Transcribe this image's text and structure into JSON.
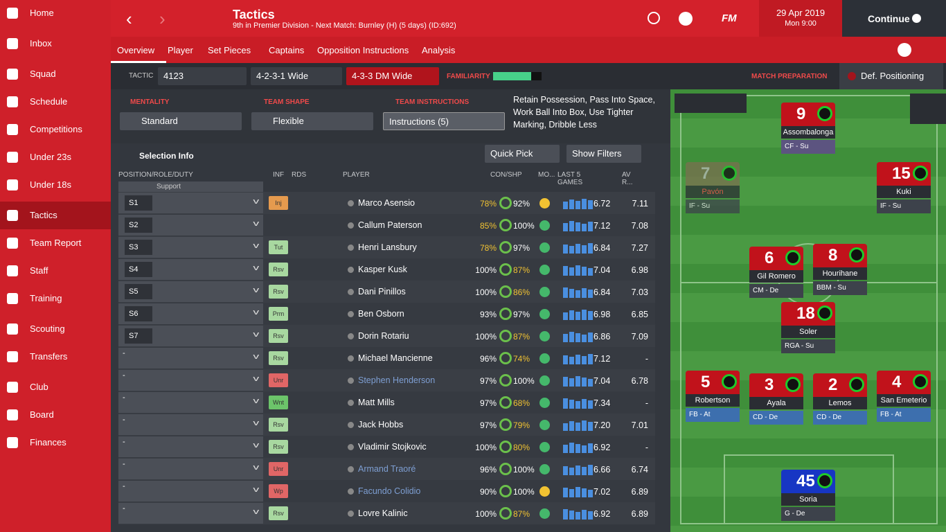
{
  "sidebar": {
    "items": [
      "Home",
      "Inbox",
      "Squad",
      "Schedule",
      "Competitions",
      "Under 23s",
      "Under 18s",
      "Tactics",
      "Team Report",
      "Staff",
      "Training",
      "Scouting",
      "Transfers",
      "Club",
      "Board",
      "Finances"
    ]
  },
  "header": {
    "title": "Tactics",
    "subtitle": "9th in Premier Division - Next Match: Burnley (H) (5 days) (ID:692)",
    "date": "29 Apr 2019",
    "time": "Mon 9:00",
    "continue": "Continue",
    "logo": "FM"
  },
  "tabs": [
    "Overview",
    "Player",
    "Set Pieces",
    "Captains",
    "Opposition Instructions",
    "Analysis"
  ],
  "tactic_bar": {
    "label": "TACTIC",
    "name": "4123",
    "formation_a": "4-2-3-1 Wide",
    "formation_b": "4-3-3 DM Wide",
    "familiarity": "FAMILIARITY",
    "match_preparation": "MATCH PREPARATION",
    "focus": "Def. Positioning"
  },
  "settings": {
    "mentality_label": "MENTALITY",
    "mentality": "Standard",
    "shape_label": "TEAM SHAPE",
    "shape": "Flexible",
    "instructions_label": "TEAM INSTRUCTIONS",
    "instructions": "Instructions (5)",
    "instructions_text": "Retain Possession, Pass Into Space, Work Ball Into Box, Use Tighter Marking, Dribble Less"
  },
  "toolbar": {
    "selection_info": "Selection Info",
    "quick_pick": "Quick Pick",
    "show_filters": "Show Filters"
  },
  "table": {
    "headers": [
      "POSITION/ROLE/DUTY",
      "INF",
      "RDS",
      "PLAYER",
      "CON/SHP",
      "MO...",
      "LAST 5 GAMES",
      "AV R..."
    ],
    "partial_row": "Support",
    "rows": [
      {
        "pos": "S1",
        "inf": "Inj",
        "player": "Marco Asensio",
        "con": "78%",
        "shp": "92%",
        "last5": "6.72",
        "av": "7.11"
      },
      {
        "pos": "S2",
        "player": "Callum Paterson",
        "con": "85%",
        "shp": "100%",
        "last5": "7.12",
        "av": "7.08"
      },
      {
        "pos": "S3",
        "inf": "Tut",
        "player": "Henri Lansbury",
        "con": "78%",
        "shp": "97%",
        "last5": "6.84",
        "av": "7.27"
      },
      {
        "pos": "S4",
        "inf": "Rsv",
        "player": "Kasper Kusk",
        "con": "100%",
        "shp": "87%",
        "last5": "7.04",
        "av": "6.98"
      },
      {
        "pos": "S5",
        "inf": "Rsv",
        "player": "Dani Pinillos",
        "con": "100%",
        "shp": "86%",
        "last5": "6.84",
        "av": "7.03"
      },
      {
        "pos": "S6",
        "inf": "Prm",
        "player": "Ben Osborn",
        "con": "93%",
        "shp": "97%",
        "last5": "6.98",
        "av": "6.85"
      },
      {
        "pos": "S7",
        "inf": "Rsv",
        "player": "Dorin Rotariu",
        "con": "100%",
        "shp": "87%",
        "last5": "6.86",
        "av": "7.09"
      },
      {
        "pos": "-",
        "inf": "Rsv",
        "player": "Michael Mancienne",
        "con": "96%",
        "shp": "74%",
        "last5": "7.12",
        "av": "-"
      },
      {
        "pos": "-",
        "inf": "Unr",
        "player": "Stephen Henderson",
        "con": "97%",
        "shp": "100%",
        "last5": "7.04",
        "av": "6.78"
      },
      {
        "pos": "-",
        "inf": "Wnt",
        "player": "Matt Mills",
        "con": "97%",
        "shp": "68%",
        "last5": "7.34",
        "av": "-"
      },
      {
        "pos": "-",
        "inf": "Rsv",
        "player": "Jack Hobbs",
        "con": "97%",
        "shp": "79%",
        "last5": "7.20",
        "av": "7.01"
      },
      {
        "pos": "-",
        "inf": "Rsv",
        "player": "Vladimir Stojkovic",
        "con": "100%",
        "shp": "80%",
        "last5": "6.92",
        "av": "-"
      },
      {
        "pos": "-",
        "inf": "Unr",
        "player": "Armand Traoré",
        "con": "96%",
        "shp": "100%",
        "last5": "6.66",
        "av": "6.74"
      },
      {
        "pos": "-",
        "inf": "Wp",
        "player": "Facundo Colidio",
        "con": "90%",
        "shp": "100%",
        "last5": "7.02",
        "av": "6.89"
      },
      {
        "pos": "-",
        "inf": "Rsv",
        "player": "Lovre Kalinic",
        "con": "100%",
        "shp": "87%",
        "last5": "6.92",
        "av": "6.89"
      }
    ]
  },
  "pitch": {
    "players": [
      {
        "number": 9,
        "name": "Assombalonga",
        "role": "CF - Su"
      },
      {
        "number": 7,
        "name": "Pavón",
        "role": "IF - Su"
      },
      {
        "number": 15,
        "name": "Kuki",
        "role": "IF - Su"
      },
      {
        "number": 6,
        "name": "Gil Romero",
        "role": "CM - De"
      },
      {
        "number": 8,
        "name": "Hourihane",
        "role": "BBM - Su"
      },
      {
        "number": 18,
        "name": "Soler",
        "role": "RGA - Su"
      },
      {
        "number": 5,
        "name": "Robertson",
        "role": "FB - At"
      },
      {
        "number": 3,
        "name": "Ayala",
        "role": "CD - De"
      },
      {
        "number": 2,
        "name": "Lemos",
        "role": "CD - De"
      },
      {
        "number": 4,
        "name": "San Emeterio",
        "role": "FB - At"
      },
      {
        "number": 45,
        "name": "Soria",
        "role": "G - De"
      }
    ]
  }
}
